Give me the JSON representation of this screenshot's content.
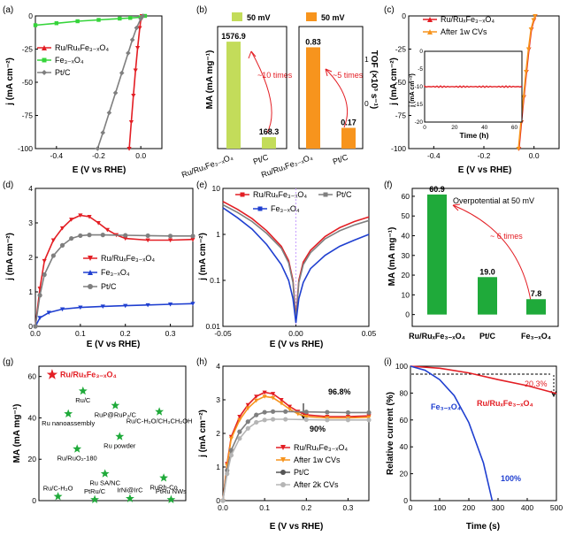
{
  "colors": {
    "red": "#e31e24",
    "green": "#35d43a",
    "gray": "#7f7f7f",
    "blue": "#1f3fd0",
    "orange": "#f7941d",
    "lime": "#c3dc5a",
    "bar_green": "#1faa3a",
    "lightgray": "#b5b5b5"
  },
  "chart_data": [
    {
      "id": "a",
      "panel": "(a)",
      "type": "line",
      "xlabel": "E (V vs RHE)",
      "ylabel": "j (mA cm⁻²)",
      "xlim": [
        -0.5,
        0.1
      ],
      "ylim": [
        -100,
        0
      ],
      "xticks": [
        "-0.4",
        "-0.2",
        "0.0"
      ],
      "xtick_vals": [
        -0.4,
        -0.2,
        0.0
      ],
      "yticks": [
        "0",
        "-25",
        "-50",
        "-75",
        "-100"
      ],
      "ytick_vals": [
        0,
        -25,
        -50,
        -75,
        -100
      ],
      "series": [
        {
          "name": "Ru/RuxFe3-xO4",
          "color": "red",
          "marker": "tri",
          "x": [
            -0.055,
            -0.045,
            -0.035,
            -0.025,
            -0.015,
            -0.005,
            0.0,
            0.005
          ],
          "y": [
            -100,
            -80,
            -60,
            -41,
            -24,
            -9,
            -3,
            0
          ]
        },
        {
          "name": "Fe3-xO4",
          "color": "green",
          "marker": "sq",
          "x": [
            -0.5,
            -0.4,
            -0.3,
            -0.2,
            -0.1,
            -0.05,
            0.0,
            0.02
          ],
          "y": [
            -7,
            -5.5,
            -4,
            -3,
            -2,
            -1.5,
            -1,
            0
          ]
        },
        {
          "name": "Pt/C",
          "color": "gray",
          "marker": "dia",
          "x": [
            -0.205,
            -0.18,
            -0.15,
            -0.12,
            -0.09,
            -0.06,
            -0.04,
            -0.02,
            0.0,
            0.01
          ],
          "y": [
            -100,
            -88,
            -73,
            -58,
            -43,
            -28,
            -18,
            -9,
            -2,
            0
          ]
        }
      ],
      "legend": [
        "Ru/RuₓFe₃₋ₓO₄",
        "Fe₃₋ₓO₄",
        "Pt/C"
      ]
    },
    {
      "id": "b",
      "panel": "(b)",
      "type": "bar",
      "ylabel": "MA (mA mg⁻¹)",
      "ylabel_right": "TOF (×10³ s⁻¹)",
      "categories": [
        "Ru/RuxFe3-xO4",
        "Pt/C"
      ],
      "category_labels": [
        "Ru/RuₓFe₃₋ₓO₄",
        "Pt/C"
      ],
      "ma_values": [
        1576.9,
        168.3
      ],
      "ma_labels": [
        "1576.9",
        "168.3"
      ],
      "tof_values": [
        0.83,
        0.17
      ],
      "tof_labels": [
        "0.83",
        "0.17"
      ],
      "legend_left": "50 mV",
      "legend_right": "50 mV",
      "annot_left": "~10 times",
      "annot_right": "~5 times",
      "right_axis_ticks": [
        "1",
        "0"
      ]
    },
    {
      "id": "c",
      "panel": "(c)",
      "type": "line",
      "xlabel": "E (V vs RHE)",
      "ylabel": "j (mA cm⁻²)",
      "xlim": [
        -0.5,
        0.1
      ],
      "ylim": [
        -100,
        0
      ],
      "xticks": [
        "-0.4",
        "-0.2",
        "0.0"
      ],
      "xtick_vals": [
        -0.4,
        -0.2,
        0.0
      ],
      "yticks": [
        "0",
        "-25",
        "-50",
        "-75",
        "-100"
      ],
      "ytick_vals": [
        0,
        -25,
        -50,
        -75,
        -100
      ],
      "series": [
        {
          "name": "Ru/RuxFe3-xO4",
          "color": "red",
          "marker": "tri",
          "x": [
            -0.06,
            -0.05,
            -0.04,
            -0.03,
            -0.02,
            -0.01,
            0.0,
            0.005
          ],
          "y": [
            -100,
            -80,
            -61,
            -42,
            -25,
            -10,
            -3,
            0
          ]
        },
        {
          "name": "After 1w CVs",
          "color": "orange",
          "marker": "tri",
          "x": [
            -0.062,
            -0.052,
            -0.042,
            -0.032,
            -0.022,
            -0.012,
            -0.002,
            0.004
          ],
          "y": [
            -100,
            -80,
            -61,
            -42,
            -25,
            -10,
            -3,
            0
          ]
        }
      ],
      "legend": [
        "Ru/RuₓFe₃₋ₓO₄",
        "After 1w CVs"
      ],
      "inset": {
        "xlabel": "Time (h)",
        "ylabel": "j (mA cm⁻²)",
        "xticks": [
          "0",
          "20",
          "40",
          "60"
        ],
        "yticks": [
          "0",
          "-5",
          "-10",
          "-15",
          "-20"
        ],
        "xlim": [
          0,
          65
        ],
        "ylim": [
          -20,
          0
        ],
        "level": -10
      }
    },
    {
      "id": "d",
      "panel": "(d)",
      "type": "line",
      "xlabel": "E (V vs RHE)",
      "ylabel": "j (mA cm⁻²)",
      "xlim": [
        0,
        0.35
      ],
      "ylim": [
        0,
        4
      ],
      "xticks": [
        "0.0",
        "0.1",
        "0.2",
        "0.3"
      ],
      "xtick_vals": [
        0,
        0.1,
        0.2,
        0.3
      ],
      "yticks": [
        "0",
        "1",
        "2",
        "3",
        "4"
      ],
      "ytick_vals": [
        0,
        1,
        2,
        3,
        4
      ],
      "series": [
        {
          "name": "Ru/RuxFe3-xO4",
          "color": "red",
          "marker": "tri",
          "x": [
            0,
            0.01,
            0.02,
            0.04,
            0.06,
            0.08,
            0.1,
            0.12,
            0.14,
            0.16,
            0.18,
            0.2,
            0.25,
            0.3,
            0.35
          ],
          "y": [
            0,
            1.1,
            1.9,
            2.5,
            2.85,
            3.1,
            3.22,
            3.18,
            3.0,
            2.8,
            2.65,
            2.55,
            2.5,
            2.5,
            2.52
          ]
        },
        {
          "name": "Fe3-xO4",
          "color": "blue",
          "marker": "tri",
          "x": [
            0,
            0.01,
            0.03,
            0.06,
            0.1,
            0.15,
            0.2,
            0.25,
            0.3,
            0.35
          ],
          "y": [
            0,
            0.25,
            0.4,
            0.5,
            0.55,
            0.58,
            0.6,
            0.62,
            0.64,
            0.66
          ]
        },
        {
          "name": "Pt/C",
          "color": "gray",
          "marker": "dot",
          "x": [
            0,
            0.01,
            0.02,
            0.04,
            0.06,
            0.08,
            0.1,
            0.12,
            0.15,
            0.2,
            0.25,
            0.3,
            0.35
          ],
          "y": [
            0,
            0.9,
            1.5,
            2.05,
            2.35,
            2.55,
            2.63,
            2.65,
            2.65,
            2.64,
            2.63,
            2.62,
            2.62
          ]
        }
      ],
      "legend": [
        "Ru/RuₓFe₃₋ₓO₄",
        "Fe₃₋ₓO₄",
        "Pt/C"
      ]
    },
    {
      "id": "e",
      "panel": "(e)",
      "type": "line",
      "scale": "log",
      "xlabel": "E (V vs RHE)",
      "ylabel": "j (mA cm⁻²)",
      "xlim": [
        -0.05,
        0.05
      ],
      "ylim": [
        0.01,
        10
      ],
      "xticks": [
        "-0.05",
        "0.00",
        "0.05"
      ],
      "xtick_vals": [
        -0.05,
        0,
        0.05
      ],
      "yticks": [
        "0.01",
        "0.1",
        "1",
        "10"
      ],
      "ytick_vals": [
        0.01,
        0.1,
        1,
        10
      ],
      "series": [
        {
          "name": "Ru/RuxFe3-xO4",
          "color": "red",
          "x": [
            -0.05,
            -0.04,
            -0.03,
            -0.02,
            -0.01,
            -0.005,
            -0.002,
            0,
            0.002,
            0.005,
            0.01,
            0.02,
            0.03,
            0.04,
            0.05
          ],
          "y": [
            5.2,
            3.5,
            2.2,
            1.2,
            0.55,
            0.27,
            0.1,
            0.015,
            0.1,
            0.25,
            0.45,
            0.9,
            1.4,
            1.9,
            2.4
          ]
        },
        {
          "name": "Pt/C",
          "color": "gray",
          "x": [
            -0.05,
            -0.04,
            -0.03,
            -0.02,
            -0.01,
            -0.005,
            -0.002,
            0,
            0.002,
            0.005,
            0.01,
            0.02,
            0.03,
            0.04,
            0.05
          ],
          "y": [
            4.4,
            3.0,
            1.9,
            1.05,
            0.5,
            0.24,
            0.09,
            0.013,
            0.09,
            0.22,
            0.4,
            0.8,
            1.2,
            1.6,
            2.0
          ]
        },
        {
          "name": "Fe3-xO4",
          "color": "blue",
          "x": [
            -0.05,
            -0.04,
            -0.03,
            -0.02,
            -0.01,
            -0.005,
            -0.002,
            0,
            0.002,
            0.005,
            0.01,
            0.02,
            0.03,
            0.04,
            0.05
          ],
          "y": [
            3.8,
            2.3,
            1.3,
            0.6,
            0.22,
            0.1,
            0.04,
            0.012,
            0.04,
            0.09,
            0.18,
            0.35,
            0.55,
            0.75,
            1.0
          ]
        }
      ],
      "legend": [
        "Ru/RuₓFe₃₋ₓO₄",
        "Pt/C",
        "Fe₃₋ₓO₄"
      ]
    },
    {
      "id": "f",
      "panel": "(f)",
      "type": "bar",
      "ylabel": "MA (mA mg⁻¹)",
      "ylim": [
        -6,
        64
      ],
      "yticks": [
        "0",
        "10",
        "20",
        "30",
        "40",
        "50",
        "60"
      ],
      "ytick_vals": [
        0,
        10,
        20,
        30,
        40,
        50,
        60
      ],
      "categories": [
        "Ru/RuxFe3-xO4",
        "Pt/C",
        "Fe3-xO4"
      ],
      "category_labels": [
        "Ru/RuₓFe₃₋ₓO₄",
        "Pt/C",
        "Fe₃₋ₓO₄"
      ],
      "values": [
        60.9,
        19.0,
        7.8
      ],
      "value_labels": [
        "60.9",
        "19.0",
        "7.8"
      ],
      "title": "Overpotential at 50 mV",
      "annot": "~ 6 times"
    },
    {
      "id": "g",
      "panel": "(g)",
      "type": "scatter",
      "ylabel": "MA (mA mg⁻¹)",
      "ylim": [
        0,
        65
      ],
      "yticks": [
        "0",
        "20",
        "40",
        "60"
      ],
      "ytick_vals": [
        0,
        20,
        40,
        60
      ],
      "points": [
        {
          "label": "Ru/RuₓFe₃₋ₓO₄",
          "x": 0.09,
          "y": 60.9,
          "star": true
        },
        {
          "label": "Ru/C",
          "x": 0.3,
          "y": 53
        },
        {
          "label": "RuP@RuP₂/C",
          "x": 0.52,
          "y": 46
        },
        {
          "label": "Ru nanoassembly",
          "x": 0.2,
          "y": 42
        },
        {
          "label": "Ru/C-H₂O/CH₃CH₂OH",
          "x": 0.82,
          "y": 43
        },
        {
          "label": "Ru powder",
          "x": 0.55,
          "y": 31
        },
        {
          "label": "Ru/RuO₂-180",
          "x": 0.26,
          "y": 25
        },
        {
          "label": "Ru SA/NC",
          "x": 0.45,
          "y": 13
        },
        {
          "label": "RuRh-Co",
          "x": 0.85,
          "y": 11
        },
        {
          "label": "Ru/C-H₂O",
          "x": 0.13,
          "y": 2
        },
        {
          "label": "PtRu/C",
          "x": 0.38,
          "y": 0.5
        },
        {
          "label": "IrNi@IrC",
          "x": 0.62,
          "y": 1
        },
        {
          "label": "PtRu NWs",
          "x": 0.9,
          "y": 0.5
        }
      ]
    },
    {
      "id": "h",
      "panel": "(h)",
      "type": "line",
      "xlabel": "E (V vs RHE)",
      "ylabel": "j (mA cm⁻²)",
      "xlim": [
        0,
        0.35
      ],
      "ylim": [
        0,
        4
      ],
      "xticks": [
        "0.0",
        "0.1",
        "0.2",
        "0.3"
      ],
      "xtick_vals": [
        0,
        0.1,
        0.2,
        0.3
      ],
      "yticks": [
        "0",
        "1",
        "2",
        "3",
        "4"
      ],
      "ytick_vals": [
        0,
        1,
        2,
        3,
        4
      ],
      "series": [
        {
          "name": "Ru/RuxFe3-xO4",
          "color": "red",
          "marker": "tri",
          "x": [
            0,
            0.01,
            0.02,
            0.04,
            0.06,
            0.08,
            0.1,
            0.12,
            0.14,
            0.16,
            0.18,
            0.2,
            0.25,
            0.3,
            0.35
          ],
          "y": [
            0,
            1.1,
            1.9,
            2.5,
            2.85,
            3.1,
            3.22,
            3.18,
            3.0,
            2.8,
            2.65,
            2.55,
            2.5,
            2.5,
            2.52
          ]
        },
        {
          "name": "After 1w CVs",
          "color": "orange",
          "marker": "tri",
          "x": [
            0,
            0.01,
            0.02,
            0.04,
            0.06,
            0.08,
            0.1,
            0.12,
            0.14,
            0.16,
            0.18,
            0.2,
            0.25,
            0.3,
            0.35
          ],
          "y": [
            0,
            1.05,
            1.85,
            2.4,
            2.75,
            2.98,
            3.1,
            3.06,
            2.9,
            2.72,
            2.58,
            2.5,
            2.46,
            2.46,
            2.48
          ]
        },
        {
          "name": "Pt/C",
          "color": "gray",
          "marker": "dot",
          "x": [
            0,
            0.01,
            0.02,
            0.04,
            0.06,
            0.08,
            0.1,
            0.12,
            0.15,
            0.2,
            0.25,
            0.3,
            0.35
          ],
          "y": [
            0,
            0.9,
            1.5,
            2.05,
            2.35,
            2.55,
            2.63,
            2.65,
            2.65,
            2.64,
            2.63,
            2.62,
            2.62
          ]
        },
        {
          "name": "After 2k CVs",
          "color": "lightgray",
          "marker": "dot",
          "x": [
            0,
            0.01,
            0.02,
            0.04,
            0.06,
            0.08,
            0.1,
            0.12,
            0.15,
            0.2,
            0.25,
            0.3,
            0.35
          ],
          "y": [
            0,
            0.8,
            1.35,
            1.85,
            2.15,
            2.33,
            2.4,
            2.42,
            2.42,
            2.41,
            2.4,
            2.4,
            2.4
          ]
        }
      ],
      "legend": [
        "Ru/RuₓFe₃₋ₓO₄",
        "After 1w CVs",
        "Pt/C",
        "After 2k CVs"
      ],
      "annot_1": "96.8%",
      "annot_2": "90%"
    },
    {
      "id": "i",
      "panel": "(i)",
      "type": "line",
      "xlabel": "Time (s)",
      "ylabel": "Relative current (%)",
      "xlim": [
        0,
        500
      ],
      "ylim": [
        0,
        100
      ],
      "xticks": [
        "0",
        "100",
        "200",
        "300",
        "400",
        "500"
      ],
      "xtick_vals": [
        0,
        100,
        200,
        300,
        400,
        500
      ],
      "yticks": [
        "0",
        "20",
        "40",
        "60",
        "80",
        "100"
      ],
      "ytick_vals": [
        0,
        20,
        40,
        60,
        80,
        100
      ],
      "series": [
        {
          "name": "Ru/RuxFe3-xO4",
          "color": "red",
          "x": [
            0,
            100,
            200,
            300,
            400,
            500
          ],
          "y": [
            100,
            98.5,
            95,
            90,
            85.5,
            79.7
          ]
        },
        {
          "name": "Fe3-xO4",
          "color": "blue",
          "x": [
            0,
            50,
            100,
            150,
            200,
            250,
            280
          ],
          "y": [
            100,
            97,
            90,
            78,
            58,
            28,
            0
          ]
        }
      ],
      "label_ru": "Ru/RuₓFe₃₋ₓO₄",
      "label_fe": "Fe₃₋ₓO₄",
      "annot_20": "20.3%",
      "annot_100": "100%"
    }
  ]
}
